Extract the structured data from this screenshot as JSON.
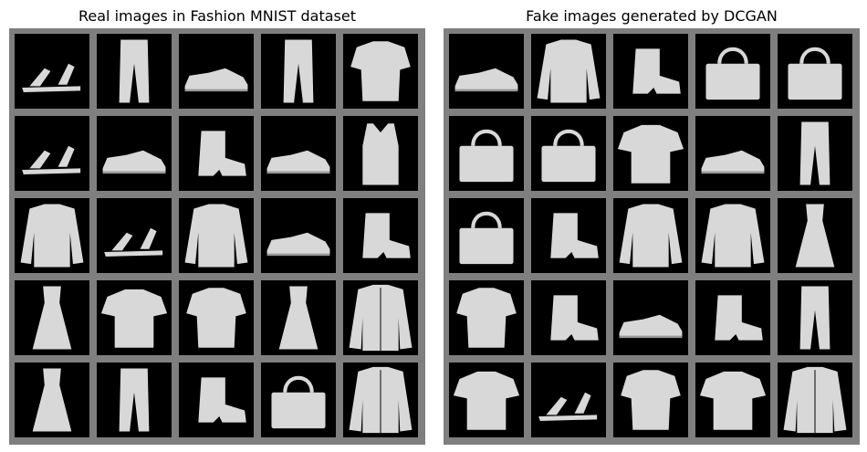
{
  "panels": [
    {
      "title": "Real images in Fashion MNIST dataset",
      "items": [
        "sandal",
        "trouser",
        "sneaker",
        "trouser",
        "shirt",
        "sandal",
        "sneaker",
        "ankle-boot",
        "sneaker",
        "top",
        "pullover",
        "sandal",
        "pullover",
        "sneaker",
        "ankle-boot",
        "dress",
        "t-shirt",
        "shirt",
        "dress",
        "coat",
        "dress",
        "trouser",
        "ankle-boot",
        "bag",
        "coat"
      ]
    },
    {
      "title": "Fake images generated by DCGAN",
      "items": [
        "sneaker",
        "pullover",
        "ankle-boot",
        "bag",
        "bag",
        "bag",
        "bag",
        "t-shirt",
        "sneaker",
        "trouser",
        "bag",
        "ankle-boot",
        "pullover",
        "pullover",
        "dress",
        "shirt",
        "ankle-boot",
        "sneaker",
        "ankle-boot",
        "trouser",
        "t-shirt",
        "sandal",
        "shirt",
        "t-shirt",
        "coat"
      ]
    }
  ],
  "colors": {
    "frame": "#7f7f7f",
    "tile": "#000000",
    "item": "#d8d8d8"
  }
}
